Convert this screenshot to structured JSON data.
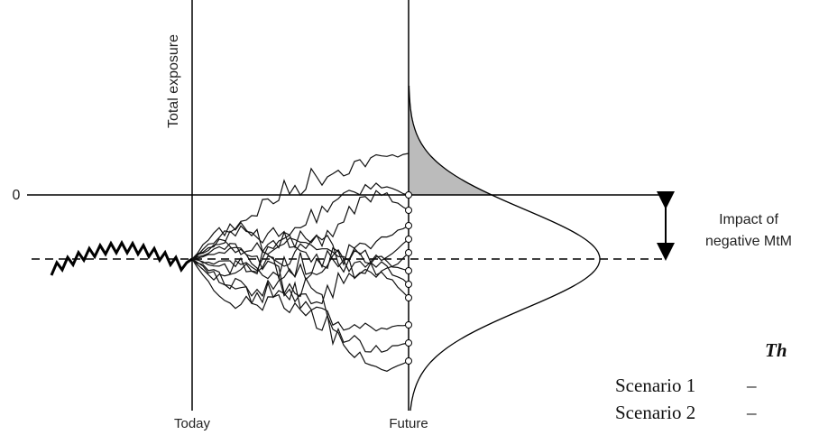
{
  "y_axis_label": "Total exposure",
  "zero_label": "0",
  "annotation": [
    "Impact of",
    "negative MtM"
  ],
  "x_labels": [
    "Today",
    "Future"
  ],
  "side_text": {
    "heading": "Th",
    "rows": [
      [
        "Scenario 1",
        "–"
      ],
      [
        "Scenario 2",
        "–"
      ]
    ]
  }
}
